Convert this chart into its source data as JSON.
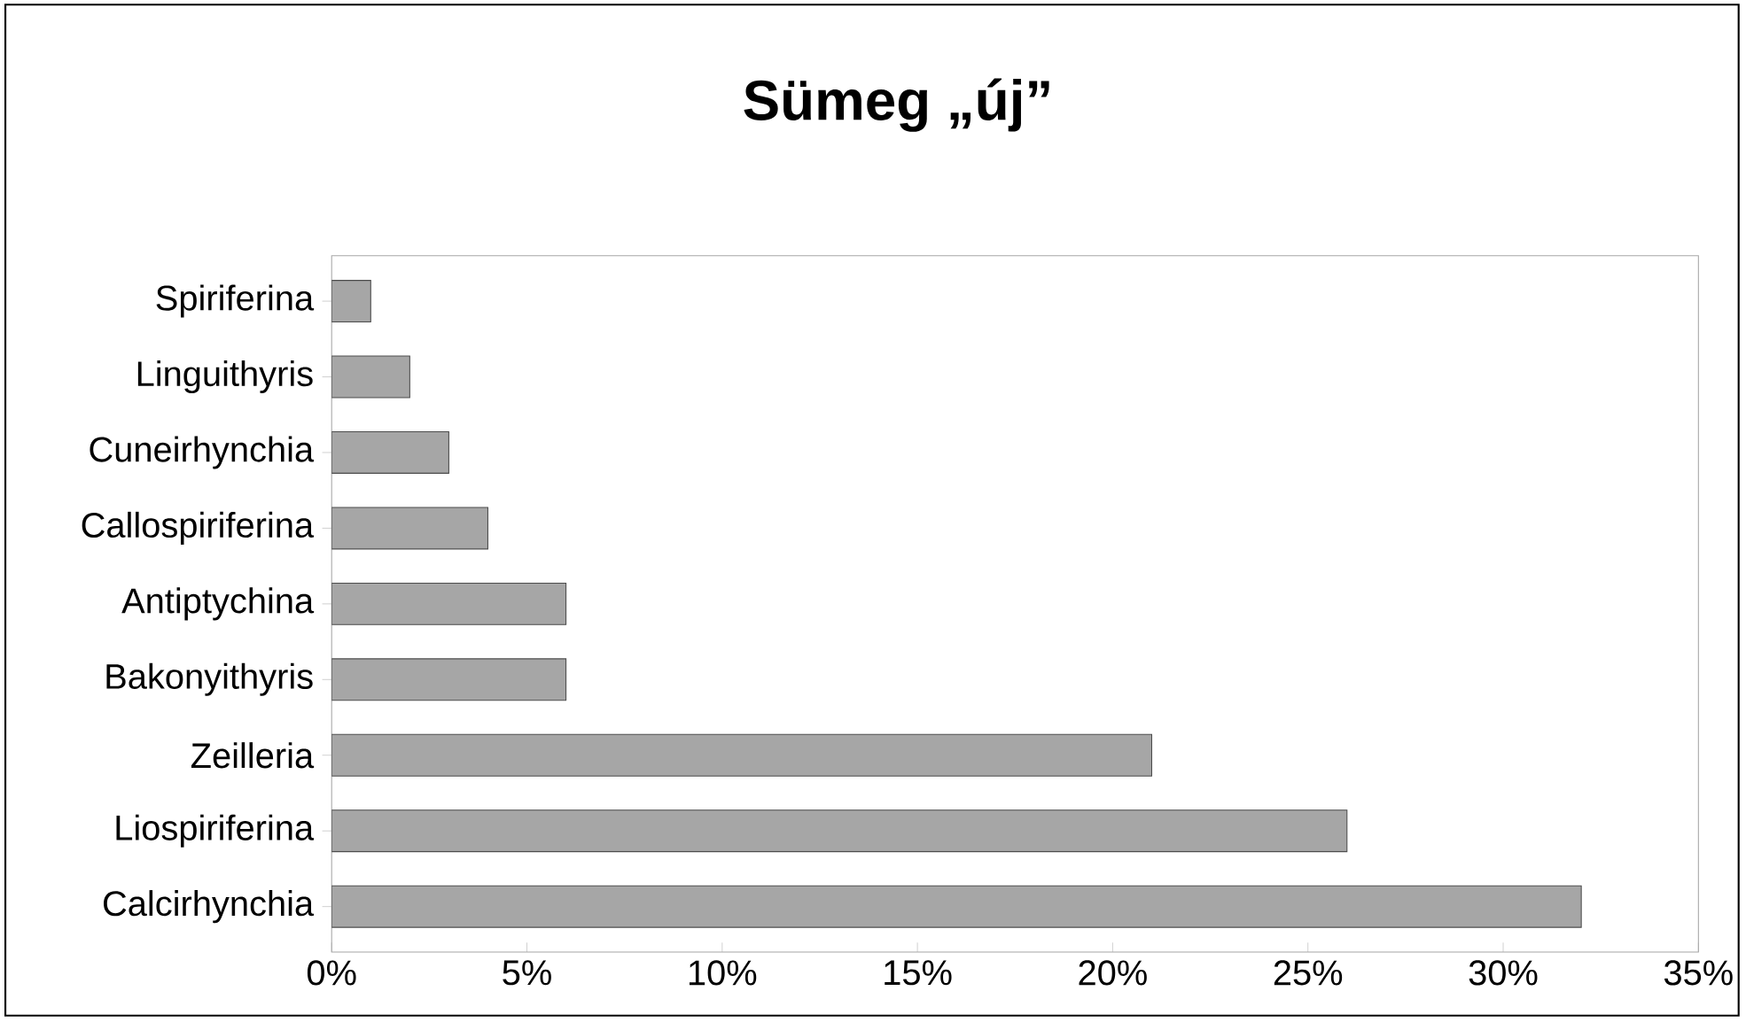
{
  "chart_data": {
    "type": "bar",
    "orientation": "horizontal",
    "title": "Sümeg „új”",
    "categories": [
      "Spiriferina",
      "Linguithyris",
      "Cuneirhynchia",
      "Callospiriferina",
      "Antiptychina",
      "Bakonyithyris",
      "Zeilleria",
      "Liospiriferina",
      "Calcirhynchia"
    ],
    "values": [
      1,
      2,
      3,
      4,
      6,
      6,
      21,
      26,
      32
    ],
    "color": "#a6a6a6",
    "xlim": [
      0,
      35
    ],
    "xticks": [
      {
        "value": 0,
        "label": "0%"
      },
      {
        "value": 5,
        "label": "5%"
      },
      {
        "value": 10,
        "label": "10%"
      },
      {
        "value": 15,
        "label": "15%"
      },
      {
        "value": 20,
        "label": "20%"
      },
      {
        "value": 25,
        "label": "25%"
      },
      {
        "value": 30,
        "label": "30%"
      },
      {
        "value": 35,
        "label": "35%"
      }
    ],
    "grid": false
  }
}
